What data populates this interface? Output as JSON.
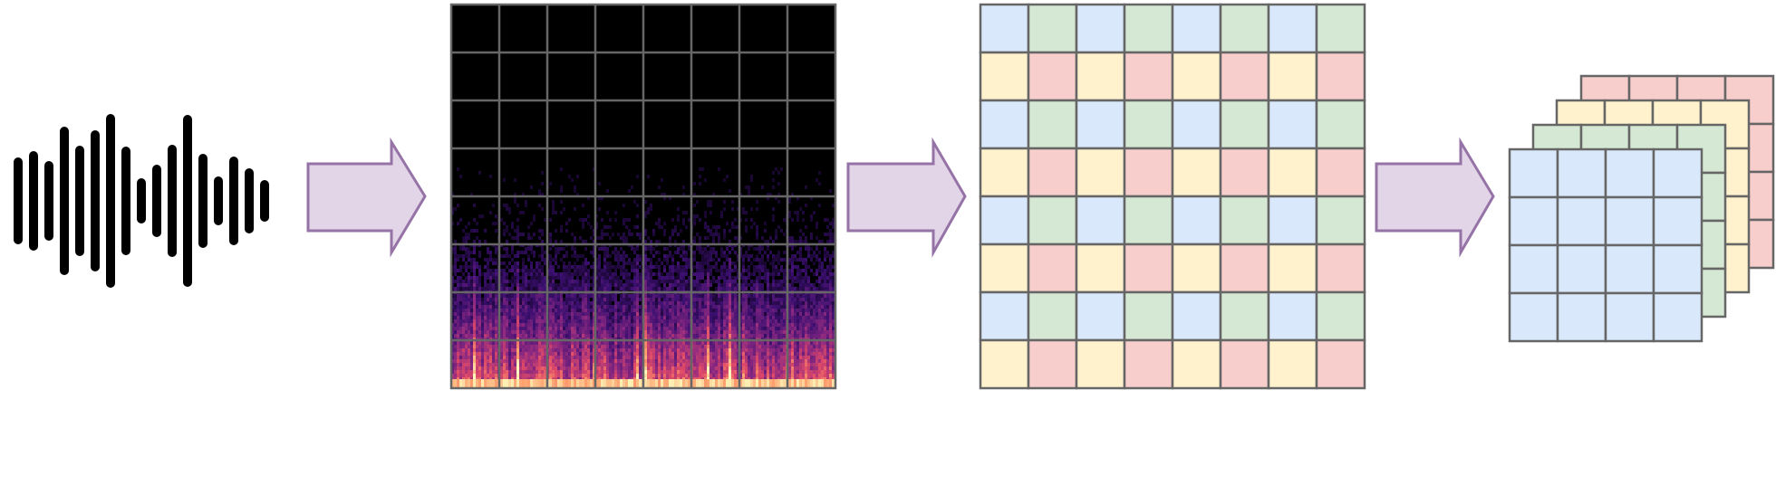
{
  "diagram": {
    "waveform": {
      "icon": "audio-waveform-icon",
      "bar_color": "#000000",
      "bar_count": 17
    },
    "arrows": {
      "fill": "#e1d5e7",
      "stroke": "#9673a6",
      "count": 3
    },
    "spectrogram": {
      "grid_rows": 8,
      "grid_cols": 8,
      "background": "#000000",
      "grid_color": "#666666",
      "colormap": [
        "#000004",
        "#3b0f70",
        "#8c2981",
        "#de4968",
        "#fe9f6d",
        "#fcfdbf"
      ]
    },
    "patch_grid": {
      "rows": 8,
      "cols": 8,
      "grid_color": "#666666",
      "even_row_colors": [
        "#dae8fc",
        "#d5e8d4"
      ],
      "odd_row_colors": [
        "#fff2cc",
        "#f8cecc"
      ]
    },
    "channel_stack": {
      "layers": 4,
      "rows": 4,
      "cols": 4,
      "layer_colors": [
        "#f8cecc",
        "#fff2cc",
        "#d5e8d4",
        "#dae8fc"
      ],
      "grid_color": "#666666"
    }
  }
}
